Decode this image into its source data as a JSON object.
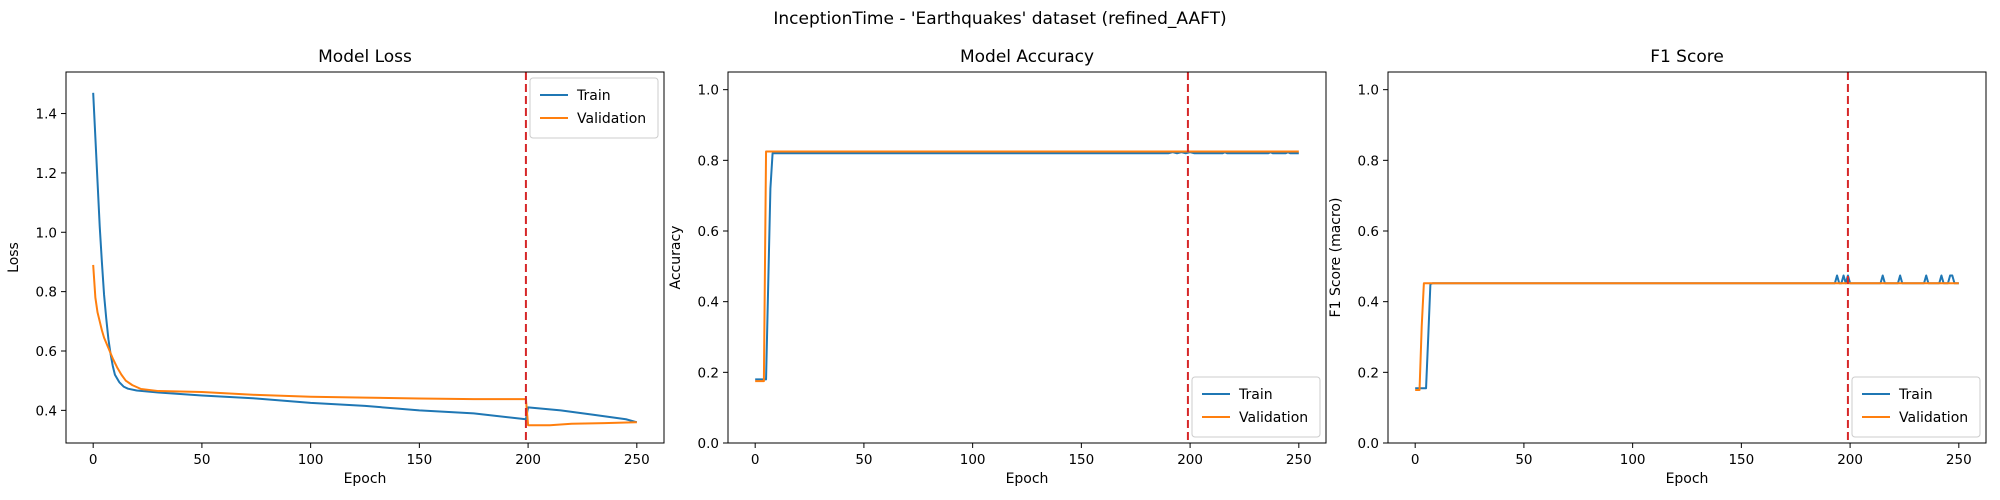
{
  "figure": {
    "suptitle": "InceptionTime - 'Earthquakes' dataset (refined_AAFT)"
  },
  "colors": {
    "train": "#1f77b4",
    "validation": "#ff7f0e",
    "marker_line": "#d62728"
  },
  "chart_data": [
    {
      "type": "line",
      "title": "Model Loss",
      "xlabel": "Epoch",
      "ylabel": "Loss",
      "xlim": [
        -12.5,
        262.5
      ],
      "ylim": [
        0.29,
        1.54
      ],
      "xticks": [
        0,
        50,
        100,
        150,
        200,
        250
      ],
      "yticks": [
        0.4,
        0.6,
        0.8,
        1.0,
        1.2,
        1.4
      ],
      "ytick_decimals": 1,
      "grid": false,
      "legend": {
        "position": "top-right",
        "entries": [
          "Train",
          "Validation"
        ]
      },
      "vline": {
        "x": 199,
        "style": "dashed",
        "color": "red"
      },
      "series": [
        {
          "name": "Train",
          "points": [
            [
              0,
              1.47
            ],
            [
              1,
              1.32
            ],
            [
              2,
              1.17
            ],
            [
              3,
              1.02
            ],
            [
              4,
              0.9
            ],
            [
              5,
              0.79
            ],
            [
              6,
              0.71
            ],
            [
              7,
              0.64
            ],
            [
              8,
              0.59
            ],
            [
              9,
              0.55
            ],
            [
              10,
              0.52
            ],
            [
              12,
              0.495
            ],
            [
              14,
              0.48
            ],
            [
              16,
              0.473
            ],
            [
              20,
              0.467
            ],
            [
              30,
              0.46
            ],
            [
              50,
              0.45
            ],
            [
              75,
              0.44
            ],
            [
              100,
              0.425
            ],
            [
              125,
              0.415
            ],
            [
              150,
              0.4
            ],
            [
              175,
              0.39
            ],
            [
              199,
              0.37
            ],
            [
              200,
              0.41
            ],
            [
              215,
              0.4
            ],
            [
              230,
              0.385
            ],
            [
              245,
              0.37
            ],
            [
              250,
              0.36
            ]
          ]
        },
        {
          "name": "Validation",
          "points": [
            [
              0,
              0.89
            ],
            [
              1,
              0.78
            ],
            [
              2,
              0.73
            ],
            [
              3,
              0.7
            ],
            [
              4,
              0.67
            ],
            [
              5,
              0.645
            ],
            [
              7,
              0.61
            ],
            [
              9,
              0.575
            ],
            [
              11,
              0.545
            ],
            [
              13,
              0.52
            ],
            [
              15,
              0.5
            ],
            [
              18,
              0.485
            ],
            [
              22,
              0.472
            ],
            [
              30,
              0.465
            ],
            [
              50,
              0.462
            ],
            [
              75,
              0.452
            ],
            [
              100,
              0.446
            ],
            [
              125,
              0.443
            ],
            [
              150,
              0.44
            ],
            [
              175,
              0.438
            ],
            [
              199,
              0.438
            ],
            [
              200,
              0.35
            ],
            [
              210,
              0.35
            ],
            [
              220,
              0.355
            ],
            [
              235,
              0.357
            ],
            [
              250,
              0.36
            ]
          ]
        }
      ]
    },
    {
      "type": "line",
      "title": "Model Accuracy",
      "xlabel": "Epoch",
      "ylabel": "Accuracy",
      "xlim": [
        -12.5,
        262.5
      ],
      "ylim": [
        0.0,
        1.05
      ],
      "xticks": [
        0,
        50,
        100,
        150,
        200,
        250
      ],
      "yticks": [
        0.0,
        0.2,
        0.4,
        0.6,
        0.8,
        1.0
      ],
      "ytick_decimals": 1,
      "grid": false,
      "legend": {
        "position": "bottom-right",
        "entries": [
          "Train",
          "Validation"
        ]
      },
      "vline": {
        "x": 199,
        "style": "dashed",
        "color": "red"
      },
      "series": [
        {
          "name": "Train",
          "points": [
            [
              0,
              0.18
            ],
            [
              1,
              0.18
            ],
            [
              2,
              0.18
            ],
            [
              3,
              0.18
            ],
            [
              4,
              0.18
            ],
            [
              5,
              0.18
            ],
            [
              6,
              0.45
            ],
            [
              7,
              0.72
            ],
            [
              8,
              0.82
            ],
            [
              190,
              0.82
            ],
            [
              192,
              0.823
            ],
            [
              194,
              0.82
            ],
            [
              196,
              0.823
            ],
            [
              198,
              0.82
            ],
            [
              200,
              0.823
            ],
            [
              202,
              0.82
            ],
            [
              215,
              0.82
            ],
            [
              216,
              0.823
            ],
            [
              217,
              0.82
            ],
            [
              236,
              0.82
            ],
            [
              237,
              0.823
            ],
            [
              238,
              0.82
            ],
            [
              244,
              0.82
            ],
            [
              245,
              0.823
            ],
            [
              246,
              0.82
            ],
            [
              250,
              0.82
            ]
          ]
        },
        {
          "name": "Validation",
          "points": [
            [
              0,
              0.175
            ],
            [
              1,
              0.175
            ],
            [
              2,
              0.175
            ],
            [
              3,
              0.175
            ],
            [
              4,
              0.175
            ],
            [
              5,
              0.825
            ],
            [
              250,
              0.825
            ]
          ]
        }
      ]
    },
    {
      "type": "line",
      "title": "F1 Score",
      "xlabel": "Epoch",
      "ylabel": "F1 Score (macro)",
      "xlim": [
        -12.5,
        262.5
      ],
      "ylim": [
        0.0,
        1.05
      ],
      "xticks": [
        0,
        50,
        100,
        150,
        200,
        250
      ],
      "yticks": [
        0.0,
        0.2,
        0.4,
        0.6,
        0.8,
        1.0
      ],
      "ytick_decimals": 1,
      "grid": false,
      "legend": {
        "position": "bottom-right",
        "entries": [
          "Train",
          "Validation"
        ]
      },
      "vline": {
        "x": 199,
        "style": "dashed",
        "color": "red"
      },
      "series": [
        {
          "name": "Train",
          "points": [
            [
              0,
              0.155
            ],
            [
              1,
              0.155
            ],
            [
              2,
              0.155
            ],
            [
              3,
              0.155
            ],
            [
              4,
              0.155
            ],
            [
              5,
              0.155
            ],
            [
              6,
              0.3
            ],
            [
              7,
              0.45
            ],
            [
              8,
              0.452
            ],
            [
              190,
              0.452
            ],
            [
              193,
              0.452
            ],
            [
              194,
              0.474
            ],
            [
              195,
              0.452
            ],
            [
              196,
              0.452
            ],
            [
              197,
              0.474
            ],
            [
              198,
              0.452
            ],
            [
              199,
              0.474
            ],
            [
              200,
              0.452
            ],
            [
              214,
              0.452
            ],
            [
              215,
              0.474
            ],
            [
              216,
              0.452
            ],
            [
              222,
              0.452
            ],
            [
              223,
              0.474
            ],
            [
              224,
              0.452
            ],
            [
              234,
              0.452
            ],
            [
              235,
              0.474
            ],
            [
              236,
              0.452
            ],
            [
              241,
              0.452
            ],
            [
              242,
              0.474
            ],
            [
              243,
              0.452
            ],
            [
              245,
              0.452
            ],
            [
              246,
              0.474
            ],
            [
              247,
              0.474
            ],
            [
              248,
              0.452
            ],
            [
              250,
              0.452
            ]
          ]
        },
        {
          "name": "Validation",
          "points": [
            [
              0,
              0.15
            ],
            [
              1,
              0.15
            ],
            [
              2,
              0.15
            ],
            [
              3,
              0.33
            ],
            [
              4,
              0.452
            ],
            [
              250,
              0.452
            ]
          ]
        }
      ]
    }
  ]
}
